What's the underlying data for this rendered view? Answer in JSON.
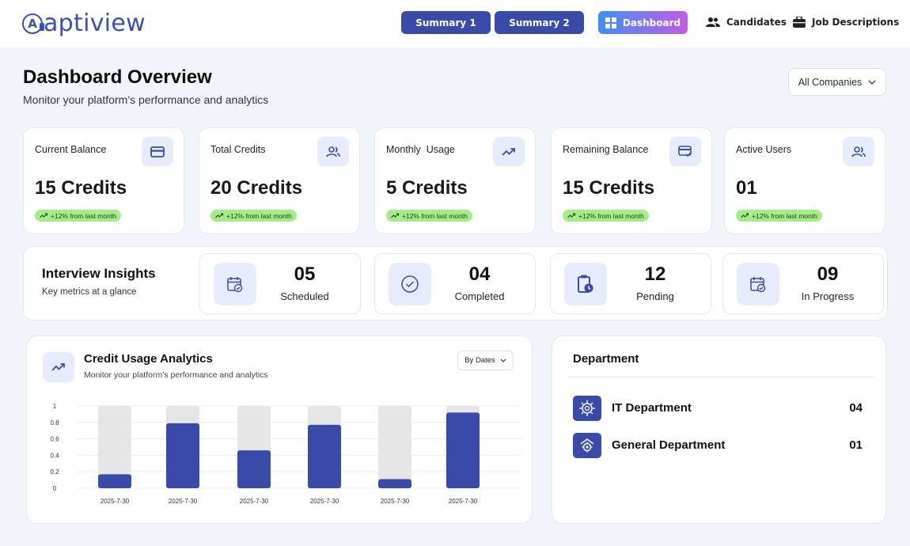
{
  "app": {
    "logo_text": "aptiview",
    "logo_mark": "A"
  },
  "nav": {
    "summary1": "Summary 1",
    "summary2": "Summary 2",
    "dashboard": "Dashboard",
    "candidates": "Candidates",
    "job_descriptions": "Job Descriptions"
  },
  "page": {
    "title": "Dashboard Overview",
    "subtitle": "Monitor your platform’s performance and analytics",
    "company_filter": "All Companies"
  },
  "stats": [
    {
      "label": "Current Balance",
      "value": "15 Credits",
      "trend": "+12%  from last month",
      "icon": "credit-card-icon"
    },
    {
      "label": "Total Credits",
      "value": "20 Credits",
      "trend": "+12%  from last month",
      "icon": "users-icon"
    },
    {
      "label": "Monthly  Usage",
      "value": "5 Credits",
      "trend": "+12%  from last month",
      "icon": "trending-up-icon"
    },
    {
      "label": "Remaining Balance",
      "value": "15 Credits",
      "trend": "+12%  from last month",
      "icon": "card-check-icon"
    },
    {
      "label": "Active Users",
      "value": "01",
      "trend": "+12%  from last month",
      "icon": "users-icon"
    }
  ],
  "insights": {
    "title": "Interview Insights",
    "subtitle": "Key metrics at a glance",
    "metrics": [
      {
        "value": "05",
        "label": "Scheduled",
        "icon": "calendar-check-icon"
      },
      {
        "value": "04",
        "label": "Completed",
        "icon": "check-circle-icon"
      },
      {
        "value": "12",
        "label": "Pending",
        "icon": "clipboard-clock-icon"
      },
      {
        "value": "09",
        "label": "In Progress",
        "icon": "calendar-check-icon"
      }
    ]
  },
  "credit_chart": {
    "title": "Credit Usage Analytics",
    "subtitle": "Monitor your platform’s performance and analytics",
    "filter": "By Dates"
  },
  "chart_data": {
    "type": "bar",
    "title": "Credit Usage Analytics",
    "categories": [
      "2025-7-30",
      "2025-7-30",
      "2025-7-30",
      "2025-7-30",
      "2025-7-30",
      "2025-7-30"
    ],
    "values": [
      0.17,
      0.79,
      0.46,
      0.77,
      0.11,
      0.92
    ],
    "ylim": [
      0,
      1
    ],
    "yticks": [
      "0",
      "0.2",
      "0.4",
      "0.6",
      "0.8",
      "1"
    ],
    "grid": true,
    "colors": {
      "bar": "#3a4aa8",
      "track": "#e6e6e6"
    }
  },
  "department": {
    "title": "Department",
    "items": [
      {
        "name": "IT Department",
        "count": "04",
        "icon": "chip-gear-icon"
      },
      {
        "name": "General Department",
        "count": "01",
        "icon": "building-gear-icon"
      }
    ]
  },
  "colors": {
    "primary": "#3a4aa8",
    "accent_light": "#e6ecfb",
    "trend_green": "#a4ec88",
    "page_bg": "#f1f5fb"
  }
}
